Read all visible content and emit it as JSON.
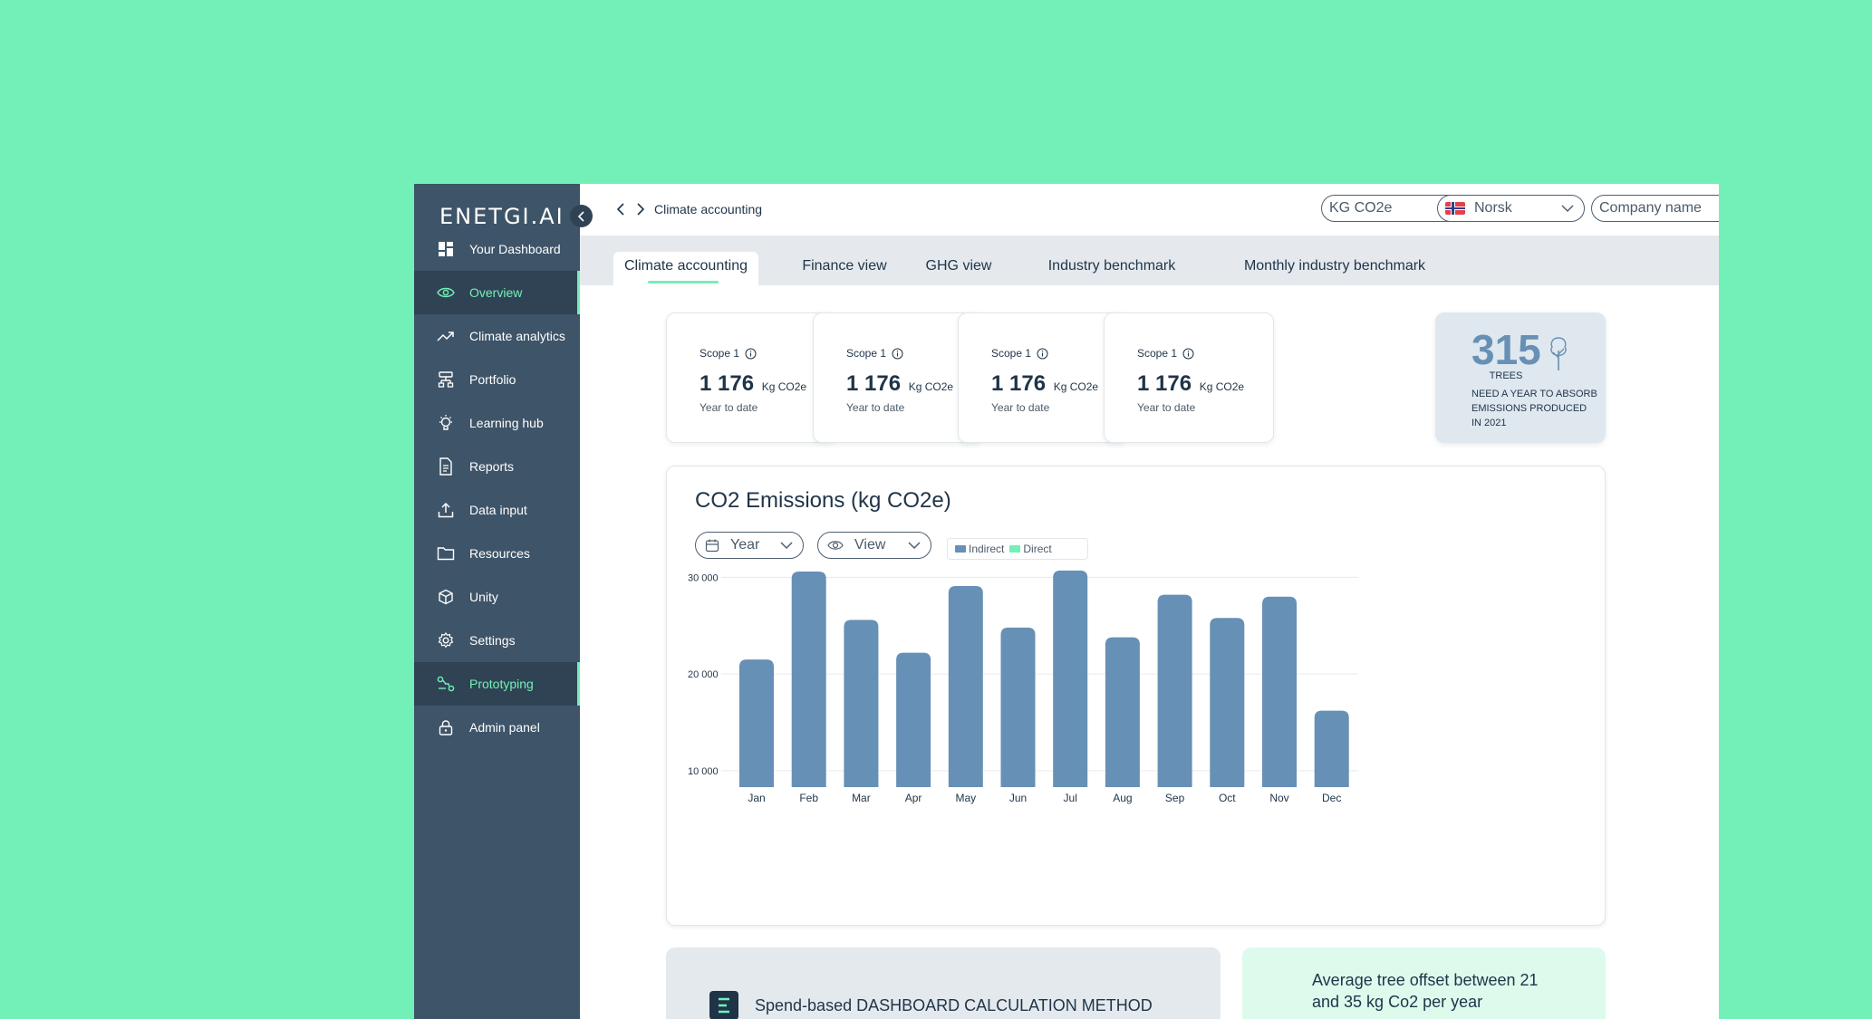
{
  "app": {
    "logo": "ENETGI.AI"
  },
  "sidebar": {
    "items": [
      {
        "label": "Your Dashboard",
        "icon": "dashboard-icon",
        "active": false
      },
      {
        "label": "Overview",
        "icon": "eye-icon",
        "active": true
      },
      {
        "label": "Climate analytics",
        "icon": "trend-icon",
        "active": false
      },
      {
        "label": "Portfolio",
        "icon": "portfolio-icon",
        "active": false
      },
      {
        "label": "Learning hub",
        "icon": "lightbulb-icon",
        "active": false
      },
      {
        "label": "Reports",
        "icon": "document-icon",
        "active": false
      },
      {
        "label": "Data input",
        "icon": "upload-icon",
        "active": false
      },
      {
        "label": "Resources",
        "icon": "folder-icon",
        "active": false
      },
      {
        "label": "Unity",
        "icon": "cube-icon",
        "active": false
      },
      {
        "label": "Settings",
        "icon": "gear-icon",
        "active": false
      },
      {
        "label": "Prototyping",
        "icon": "route-icon",
        "active": true
      },
      {
        "label": "Admin panel",
        "icon": "lock-icon",
        "active": false
      }
    ]
  },
  "header": {
    "breadcrumb": "Climate accounting",
    "unit_select": "KG CO2e",
    "language_select": "Norsk",
    "company_select": "Company name"
  },
  "tabs": [
    {
      "label": "Climate accounting",
      "active": true
    },
    {
      "label": "Finance view",
      "active": false
    },
    {
      "label": "GHG view",
      "active": false
    },
    {
      "label": "Industry benchmark",
      "active": false
    },
    {
      "label": "Monthly industry benchmark",
      "active": false
    }
  ],
  "scope_cards": [
    {
      "label": "Scope 1",
      "value": "1 176",
      "unit": "Kg CO2e",
      "sub": "Year to date"
    },
    {
      "label": "Scope 1",
      "value": "1 176",
      "unit": "Kg CO2e",
      "sub": "Year to date"
    },
    {
      "label": "Scope 1",
      "value": "1 176",
      "unit": "Kg CO2e",
      "sub": "Year to date"
    },
    {
      "label": "Scope 1",
      "value": "1 176",
      "unit": "Kg CO2e",
      "sub": "Year to date"
    }
  ],
  "trees": {
    "count": "315",
    "label": "TREES",
    "description": "NEED A YEAR TO ABSORB EMISSIONS PRODUCED IN 2021"
  },
  "chart_panel": {
    "title": "CO2 Emissions (kg CO2e)",
    "year_select": "Year",
    "view_select": "View",
    "legend_indirect": "Indirect",
    "legend_direct": "Direct"
  },
  "chart_data": {
    "type": "bar",
    "title": "CO2 Emissions (kg CO2e)",
    "categories": [
      "Jan",
      "Feb",
      "Mar",
      "Apr",
      "May",
      "Jun",
      "Jul",
      "Aug",
      "Sep",
      "Oct",
      "Nov",
      "Dec"
    ],
    "series": [
      {
        "name": "Indirect",
        "values": [
          21500,
          30600,
          25600,
          22200,
          29100,
          24800,
          30700,
          23800,
          28200,
          25800,
          28000,
          16200
        ]
      },
      {
        "name": "Direct",
        "values": [
          0,
          0,
          0,
          0,
          0,
          0,
          0,
          0,
          0,
          0,
          0,
          0
        ]
      }
    ],
    "yticks": [
      10000,
      20000,
      30000
    ],
    "ytick_labels": [
      "10 000",
      "20 000",
      "30 000"
    ],
    "ylim": [
      8300,
      30600
    ],
    "grid": true,
    "colors": {
      "Indirect": "#6690b5",
      "Direct": "#74f0b6"
    }
  },
  "bottom": {
    "left_title": "Spend-based DASHBOARD CALCULATION METHOD",
    "right_title": "Average tree offset between 21 and 35 kg Co2 per year"
  },
  "colors": {
    "accent": "#74f0b6",
    "sidebar": "#3e5468",
    "bar": "#6690b5",
    "background": "#73efb8"
  }
}
